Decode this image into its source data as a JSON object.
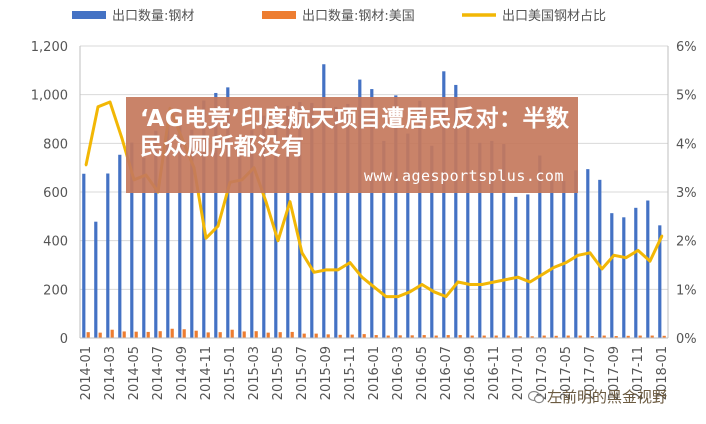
{
  "chart_data": {
    "type": "bar-line",
    "title": "",
    "legend": [
      {
        "label": "出口数量:钢材",
        "color": "#4472C4",
        "kind": "bar"
      },
      {
        "label": "出口数量:钢材:美国",
        "color": "#ED7D31",
        "kind": "bar"
      },
      {
        "label": "出口美国钢材占比",
        "color": "#F2B705",
        "kind": "line"
      }
    ],
    "legend_position": "top",
    "y_left": {
      "min": 0,
      "max": 1200,
      "ticks": [
        "0",
        "200",
        "400",
        "600",
        "800",
        "1,000",
        "1,200"
      ]
    },
    "y_right": {
      "min": 0,
      "max": 6,
      "ticks": [
        "0%",
        "1%",
        "2%",
        "3%",
        "4%",
        "5%",
        "6%"
      ]
    },
    "x_labels": [
      "2014-01",
      "2014-03",
      "2014-05",
      "2014-07",
      "2014-09",
      "2014-11",
      "2015-01",
      "2015-03",
      "2015-05",
      "2015-07",
      "2015-09",
      "2015-11",
      "2016-01",
      "2016-03",
      "2016-05",
      "2016-07",
      "2016-09",
      "2016-11",
      "2017-01",
      "2017-03",
      "2017-05",
      "2017-07",
      "2017-09",
      "2017-11",
      "2018-01"
    ],
    "months": [
      "2014-01",
      "2014-02",
      "2014-03",
      "2014-04",
      "2014-05",
      "2014-06",
      "2014-07",
      "2014-08",
      "2014-09",
      "2014-10",
      "2014-11",
      "2014-12",
      "2015-01",
      "2015-02",
      "2015-03",
      "2015-04",
      "2015-05",
      "2015-06",
      "2015-07",
      "2015-08",
      "2015-09",
      "2015-10",
      "2015-11",
      "2015-12",
      "2016-01",
      "2016-02",
      "2016-03",
      "2016-04",
      "2016-05",
      "2016-06",
      "2016-07",
      "2016-08",
      "2016-09",
      "2016-10",
      "2016-11",
      "2016-12",
      "2017-01",
      "2017-02",
      "2017-03",
      "2017-04",
      "2017-05",
      "2017-06",
      "2017-07",
      "2017-08",
      "2017-09",
      "2017-10",
      "2017-11",
      "2017-12",
      "2018-01"
    ],
    "series": [
      {
        "name": "出口数量:钢材",
        "type": "bar",
        "color": "#4472C4",
        "values": [
          675,
          478,
          676,
          753,
          803,
          741,
          852,
          881,
          886,
          856,
          976,
          1007,
          1030,
          780,
          854,
          914,
          956,
          954,
          970,
          966,
          1125,
          950,
          962,
          1062,
          1023,
          810,
          997,
          840,
          975,
          790,
          1096,
          1040,
          938,
          802,
          810,
          797,
          580,
          590,
          750,
          645,
          645,
          689,
          694,
          650,
          513,
          496,
          535,
          565,
          463
        ]
      },
      {
        "name": "出口数量:钢材:美国",
        "type": "bar",
        "color": "#ED7D31",
        "values": [
          24,
          22,
          34,
          27,
          26,
          25,
          28,
          38,
          36,
          30,
          23,
          24,
          34,
          27,
          28,
          22,
          24,
          25,
          18,
          18,
          15,
          13,
          14,
          16,
          12,
          10,
          11,
          11,
          12,
          10,
          12,
          12,
          10,
          10,
          10,
          10,
          7,
          7,
          10,
          9,
          10,
          10,
          8,
          10,
          8,
          9,
          10,
          10,
          9
        ]
      },
      {
        "name": "出口美国钢材占比",
        "type": "line",
        "color": "#F2B705",
        "values": [
          3.55,
          4.75,
          4.85,
          4.1,
          3.25,
          3.35,
          3.0,
          4.72,
          4.1,
          3.5,
          2.05,
          2.3,
          3.2,
          3.25,
          3.5,
          2.8,
          2.0,
          2.8,
          1.75,
          1.35,
          1.4,
          1.4,
          1.55,
          1.25,
          1.05,
          0.85,
          0.85,
          0.95,
          1.1,
          0.95,
          0.85,
          1.15,
          1.1,
          1.1,
          1.15,
          1.2,
          1.25,
          1.15,
          1.3,
          1.45,
          1.55,
          1.7,
          1.75,
          1.42,
          1.7,
          1.65,
          1.8,
          1.58,
          2.1
        ]
      }
    ]
  },
  "overlay": {
    "title": "‘AG电竞’印度航天项目遭居民反对：半数民众厕所都没有",
    "url": "www.agesportsplus.com"
  },
  "watermark": {
    "text": "左前明的黑金视野"
  }
}
